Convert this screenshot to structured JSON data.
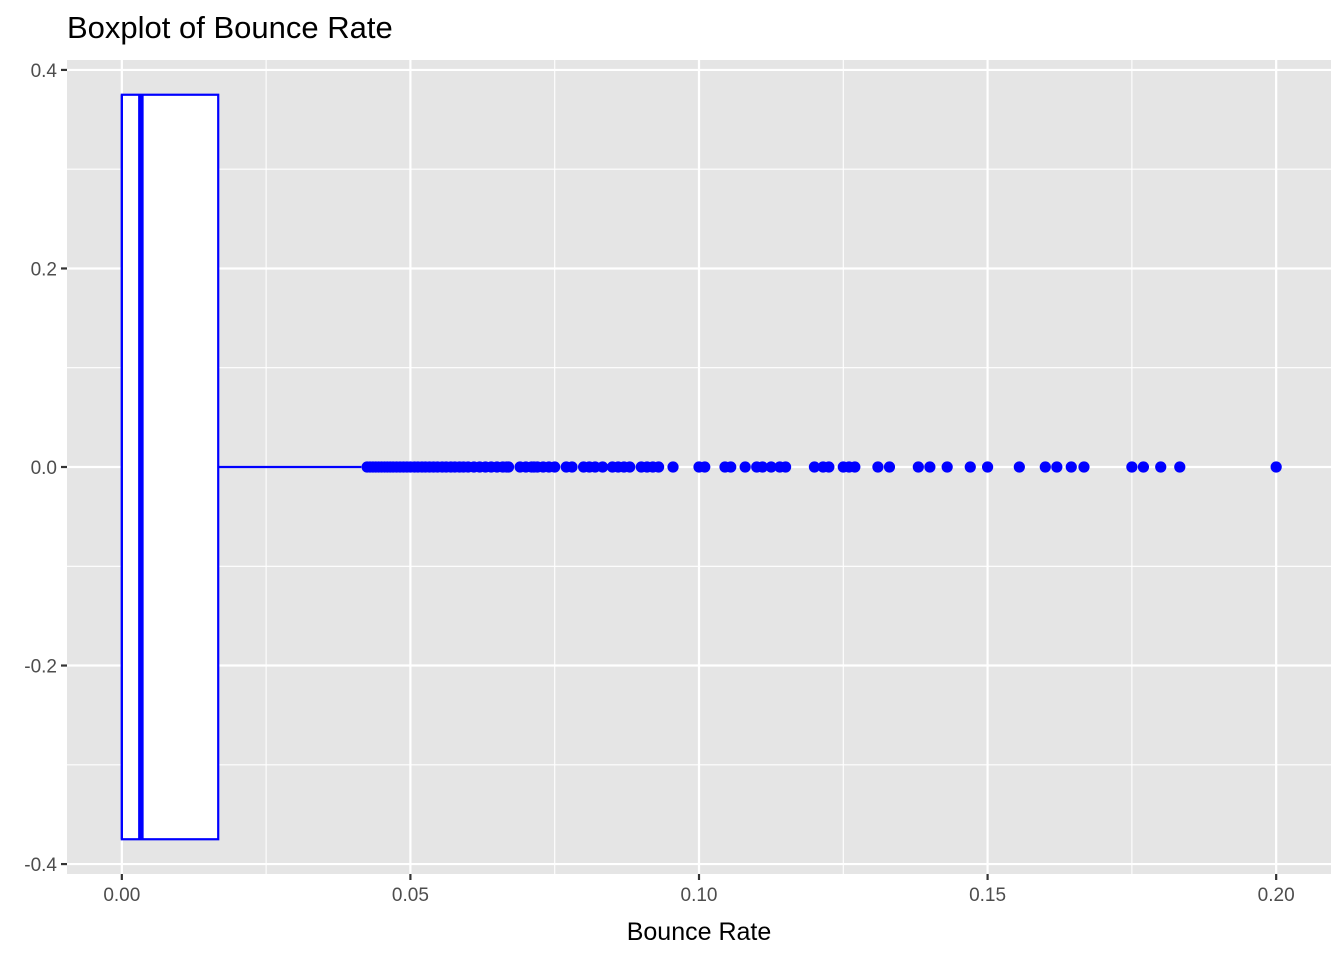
{
  "chart_data": {
    "type": "boxplot",
    "title": "Boxplot of Bounce Rate",
    "xlabel": "Bounce Rate",
    "ylabel": "",
    "xlim": [
      -0.0095,
      0.2095
    ],
    "ylim": [
      -0.41,
      0.41
    ],
    "x_ticks": [
      0.0,
      0.05,
      0.1,
      0.15,
      0.2
    ],
    "x_tick_labels": [
      "0.00",
      "0.05",
      "0.10",
      "0.15",
      "0.20"
    ],
    "y_ticks": [
      -0.4,
      -0.2,
      0.0,
      0.2,
      0.4
    ],
    "y_tick_labels": [
      "-0.4",
      "-0.2",
      "0.0",
      "0.2",
      "0.4"
    ],
    "grid": true,
    "orientation": "horizontal",
    "colors": {
      "panel": "#e5e5e5",
      "grid": "#ffffff",
      "box": "#0000ff",
      "box_fill": "#ffffff",
      "outlier": "#0000ff"
    },
    "box": {
      "min": 0.0,
      "q1": 0.0,
      "median": 0.0033,
      "q3": 0.0167,
      "whisker_low": 0.0,
      "whisker_high": 0.0415,
      "y_extent": [
        -0.375,
        0.375
      ]
    },
    "outliers": [
      0.0425,
      0.043,
      0.0435,
      0.044,
      0.0445,
      0.045,
      0.0455,
      0.046,
      0.0465,
      0.047,
      0.0476,
      0.0482,
      0.0488,
      0.0494,
      0.05,
      0.0507,
      0.0513,
      0.052,
      0.0526,
      0.0533,
      0.054,
      0.0547,
      0.0555,
      0.0562,
      0.057,
      0.0577,
      0.0585,
      0.0592,
      0.06,
      0.061,
      0.062,
      0.063,
      0.064,
      0.065,
      0.066,
      0.0667,
      0.067,
      0.069,
      0.07,
      0.071,
      0.0714,
      0.072,
      0.073,
      0.074,
      0.075,
      0.077,
      0.078,
      0.08,
      0.081,
      0.082,
      0.0833,
      0.085,
      0.086,
      0.087,
      0.088,
      0.09,
      0.091,
      0.092,
      0.093,
      0.0955,
      0.1,
      0.101,
      0.1045,
      0.1055,
      0.108,
      0.11,
      0.111,
      0.1125,
      0.114,
      0.115,
      0.12,
      0.1215,
      0.1225,
      0.125,
      0.126,
      0.127,
      0.131,
      0.133,
      0.138,
      0.14,
      0.143,
      0.147,
      0.15,
      0.1555,
      0.16,
      0.162,
      0.1645,
      0.1667,
      0.175,
      0.177,
      0.18,
      0.1833,
      0.2
    ]
  }
}
